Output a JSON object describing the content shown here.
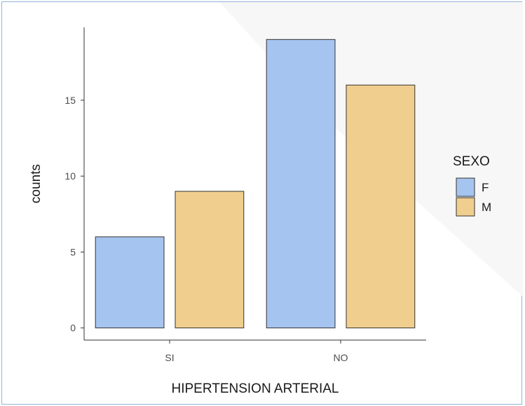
{
  "chart_data": {
    "type": "bar",
    "categories": [
      "SI",
      "NO"
    ],
    "series": [
      {
        "name": "F",
        "values": [
          6,
          19
        ],
        "color": "#a6c4f0"
      },
      {
        "name": "M",
        "values": [
          9,
          16
        ],
        "color": "#f0ce8e"
      }
    ],
    "xlabel": "HIPERTENSION ARTERIAL",
    "ylabel": "counts",
    "yticks": [
      0,
      5,
      10,
      15
    ],
    "ylim": [
      -0.8,
      19.8
    ],
    "legend": {
      "title": "SEXO",
      "position": "right"
    },
    "grid": false,
    "bar_outline_color": "#333333",
    "axis_color": "#333333"
  }
}
